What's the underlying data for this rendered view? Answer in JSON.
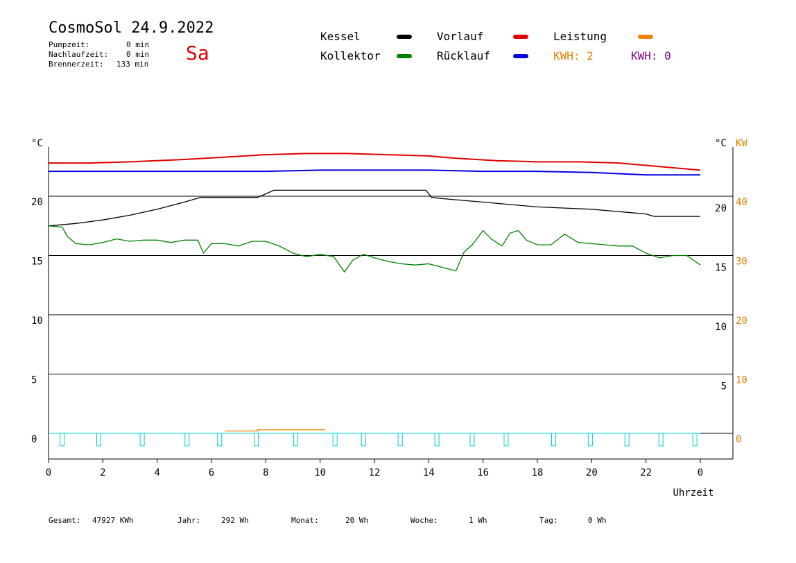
{
  "header": {
    "title": "CosmoSol 24.9.2022",
    "weekday": "Sa",
    "stats": [
      {
        "label": "Pumpzeit:",
        "value": "0 min"
      },
      {
        "label": "Nachlaufzeit:",
        "value": "0 min"
      },
      {
        "label": "Brennerzeit:",
        "value": "133 min"
      }
    ]
  },
  "legend": {
    "items": [
      {
        "label": "Kessel",
        "color": "#000000"
      },
      {
        "label": "Vorlauf",
        "color": "#e00000"
      },
      {
        "label": "Leistung",
        "color": "#f08000"
      },
      {
        "label": "Kollektor",
        "color": "#008000"
      },
      {
        "label": "Rücklauf",
        "color": "#0000e0"
      }
    ],
    "kwh_orange": "KWH: 2",
    "kwh_purple": "KWH: 0"
  },
  "colors": {
    "kessel": "#000000",
    "vorlauf": "#e00000",
    "ruecklauf": "#0000e0",
    "kollektor": "#008000",
    "leistung": "#f08000",
    "pump": "#00d0d0",
    "kwh_orange": "#e08000",
    "kwh_purple": "#800080"
  },
  "footer": {
    "gesamt_label": "Gesamt:",
    "gesamt_value": "47927 KWh",
    "jahr_label": "Jahr:",
    "jahr_value": "292 Wh",
    "monat_label": "Monat:",
    "monat_value": "20 Wh",
    "woche_label": "Woche:",
    "woche_value": "1 Wh",
    "tag_label": "Tag:",
    "tag_value": "0 Wh"
  },
  "chart_data": {
    "type": "line",
    "xlabel": "Uhrzeit",
    "left_unit": "°C",
    "right_unit_left": "°C",
    "right_unit_kw": "KW",
    "x_ticks": [
      "0",
      "2",
      "4",
      "6",
      "8",
      "10",
      "12",
      "14",
      "16",
      "18",
      "20",
      "22",
      "0"
    ],
    "left_ticks": [
      "20",
      "15",
      "10",
      "5",
      "0"
    ],
    "right_c_ticks": [
      "20",
      "15",
      "10",
      "5"
    ],
    "right_kw_ticks": [
      "40",
      "30",
      "20",
      "10",
      "0"
    ],
    "xlim": [
      0,
      24
    ],
    "ylim": [
      -2,
      25
    ],
    "grid_y": [
      0,
      5,
      10,
      15,
      20
    ],
    "series": [
      {
        "name": "Vorlauf",
        "color": "#e00000",
        "x": [
          0,
          1.5,
          3,
          5,
          6.5,
          8,
          9.5,
          11,
          12.5,
          14,
          15,
          16.5,
          18,
          19.5,
          21,
          22,
          23,
          24
        ],
        "y": [
          22.8,
          22.8,
          22.9,
          23.1,
          23.3,
          23.5,
          23.6,
          23.6,
          23.5,
          23.4,
          23.2,
          23.0,
          22.9,
          22.9,
          22.8,
          22.6,
          22.4,
          22.2
        ]
      },
      {
        "name": "Rücklauf",
        "color": "#0000e0",
        "x": [
          0,
          2,
          4,
          6,
          8,
          10,
          12,
          14,
          16,
          18,
          20,
          21,
          22,
          23,
          24
        ],
        "y": [
          22.1,
          22.1,
          22.1,
          22.1,
          22.1,
          22.2,
          22.2,
          22.2,
          22.1,
          22.1,
          22.0,
          21.9,
          21.8,
          21.8,
          21.8
        ]
      },
      {
        "name": "Kessel",
        "color": "#000000",
        "x": [
          0,
          1,
          2,
          3,
          4,
          5,
          5.6,
          7.7,
          8.3,
          10,
          12,
          13.9,
          14.1,
          14.5,
          15,
          16,
          17,
          18,
          19,
          20,
          21,
          22,
          22.3,
          23,
          24
        ],
        "y": [
          17.5,
          17.7,
          18.0,
          18.4,
          18.9,
          19.5,
          19.9,
          19.9,
          20.5,
          20.5,
          20.5,
          20.5,
          19.9,
          19.8,
          19.7,
          19.5,
          19.3,
          19.1,
          19.0,
          18.9,
          18.7,
          18.5,
          18.3,
          18.3,
          18.3
        ]
      },
      {
        "name": "Kollektor",
        "color": "#008000",
        "x": [
          0,
          0.5,
          0.7,
          1.0,
          1.5,
          2,
          2.5,
          3,
          3.5,
          4,
          4.5,
          5,
          5.5,
          5.7,
          6,
          6.5,
          7,
          7.5,
          8,
          8.5,
          9,
          9.5,
          10,
          10.5,
          10.9,
          11.2,
          11.6,
          12,
          12.5,
          13,
          13.5,
          14,
          14.5,
          15,
          15.3,
          15.6,
          16,
          16.3,
          16.7,
          17,
          17.3,
          17.6,
          18,
          18.5,
          19,
          19.5,
          20,
          20.5,
          21,
          21.5,
          22,
          22.5,
          23,
          23.5,
          24
        ],
        "y": [
          17.5,
          17.4,
          16.6,
          16.0,
          15.9,
          16.1,
          16.4,
          16.2,
          16.3,
          16.3,
          16.1,
          16.3,
          16.3,
          15.2,
          16.0,
          16.0,
          15.8,
          16.2,
          16.2,
          15.8,
          15.2,
          14.9,
          15.1,
          14.9,
          13.6,
          14.6,
          15.1,
          14.8,
          14.5,
          14.3,
          14.2,
          14.3,
          14.0,
          13.7,
          15.3,
          15.9,
          17.1,
          16.4,
          15.8,
          16.9,
          17.1,
          16.3,
          15.9,
          15.9,
          16.8,
          16.1,
          16.0,
          15.9,
          15.8,
          15.8,
          15.2,
          14.8,
          15.0,
          15.0,
          14.2
        ]
      },
      {
        "name": "Leistung",
        "color": "#f08000",
        "x": [
          6.5,
          7.7,
          7.7,
          10.2
        ],
        "y": [
          0.2,
          0.2,
          0.3,
          0.3
        ]
      }
    ],
    "pump_pulses_x": [
      0.5,
      1.85,
      3.45,
      5.1,
      6.3,
      7.65,
      9.1,
      10.55,
      11.6,
      12.95,
      14.3,
      15.6,
      16.85,
      18.6,
      19.95,
      21.3,
      22.55,
      23.8
    ]
  }
}
